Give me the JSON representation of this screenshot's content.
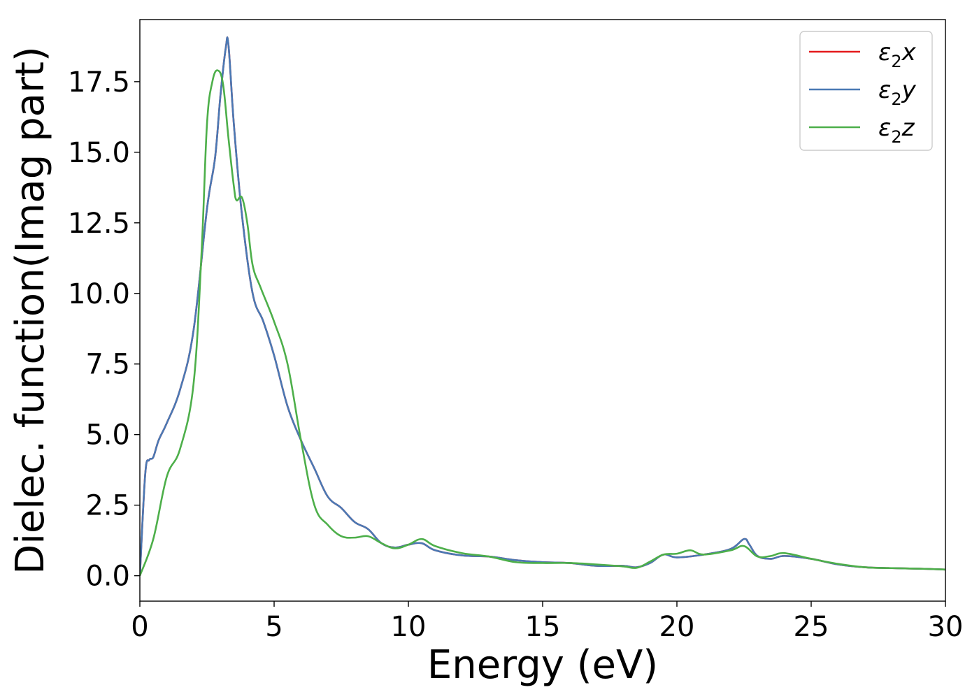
{
  "chart_data": {
    "type": "line",
    "xlabel": "Energy (eV)",
    "ylabel": "Dielec. function(Imag part)",
    "xlim": [
      0,
      30
    ],
    "ylim": [
      -0.9,
      19.7
    ],
    "xticks": [
      0,
      5,
      10,
      15,
      20,
      25,
      30
    ],
    "xtick_labels": [
      "0",
      "5",
      "10",
      "15",
      "20",
      "25",
      "30"
    ],
    "yticks": [
      0.0,
      2.5,
      5.0,
      7.5,
      10.0,
      12.5,
      15.0,
      17.5
    ],
    "ytick_labels": [
      "0.0",
      "2.5",
      "5.0",
      "7.5",
      "10.0",
      "12.5",
      "15.0",
      "17.5"
    ],
    "grid": false,
    "legend_position": "top-right",
    "series": [
      {
        "name": "ε₂x",
        "legend_main": "ε",
        "legend_sub": "2",
        "legend_var": "x",
        "color": "#e41a1c",
        "x": [
          0,
          0.2,
          0.35,
          0.5,
          0.7,
          1.0,
          1.5,
          2.0,
          2.5,
          2.8,
          3.0,
          3.2,
          3.3,
          3.5,
          3.8,
          4.2,
          4.6,
          5.0,
          5.5,
          6.0,
          6.5,
          7.0,
          7.5,
          8.0,
          8.5,
          9.0,
          9.5,
          10.0,
          10.5,
          11.0,
          12.0,
          13.0,
          14.0,
          15.0,
          16.0,
          17.0,
          18.0,
          18.5,
          19.0,
          19.5,
          20.0,
          21.0,
          22.0,
          22.5,
          22.7,
          23.0,
          23.5,
          24.0,
          25.0,
          26.0,
          27.0,
          28.0,
          29.0,
          30.0
        ],
        "y": [
          0.0,
          3.6,
          4.1,
          4.2,
          4.8,
          5.4,
          6.6,
          8.7,
          13.0,
          14.8,
          17.0,
          18.7,
          18.8,
          16.0,
          12.8,
          10.0,
          9.0,
          7.8,
          6.0,
          4.8,
          3.8,
          2.8,
          2.4,
          1.9,
          1.65,
          1.15,
          1.0,
          1.1,
          1.15,
          0.9,
          0.72,
          0.68,
          0.55,
          0.48,
          0.45,
          0.35,
          0.35,
          0.3,
          0.45,
          0.75,
          0.65,
          0.75,
          0.95,
          1.3,
          1.1,
          0.7,
          0.6,
          0.7,
          0.6,
          0.4,
          0.3,
          0.27,
          0.25,
          0.22
        ]
      },
      {
        "name": "ε₂y",
        "legend_main": "ε",
        "legend_sub": "2",
        "legend_var": "y",
        "color": "#4a79b4",
        "x": [
          0,
          0.2,
          0.35,
          0.5,
          0.7,
          1.0,
          1.5,
          2.0,
          2.5,
          2.8,
          3.0,
          3.2,
          3.3,
          3.5,
          3.8,
          4.2,
          4.6,
          5.0,
          5.5,
          6.0,
          6.5,
          7.0,
          7.5,
          8.0,
          8.5,
          9.0,
          9.5,
          10.0,
          10.5,
          11.0,
          12.0,
          13.0,
          14.0,
          15.0,
          16.0,
          17.0,
          18.0,
          18.5,
          19.0,
          19.5,
          20.0,
          21.0,
          22.0,
          22.5,
          22.7,
          23.0,
          23.5,
          24.0,
          25.0,
          26.0,
          27.0,
          28.0,
          29.0,
          30.0
        ],
        "y": [
          0.0,
          3.6,
          4.1,
          4.2,
          4.8,
          5.4,
          6.6,
          8.7,
          13.0,
          14.8,
          17.0,
          18.7,
          18.8,
          16.0,
          12.8,
          10.0,
          9.0,
          7.8,
          6.0,
          4.8,
          3.8,
          2.8,
          2.4,
          1.9,
          1.65,
          1.15,
          1.0,
          1.1,
          1.15,
          0.9,
          0.72,
          0.68,
          0.55,
          0.48,
          0.45,
          0.35,
          0.35,
          0.3,
          0.45,
          0.75,
          0.65,
          0.75,
          0.95,
          1.3,
          1.1,
          0.7,
          0.6,
          0.7,
          0.6,
          0.4,
          0.3,
          0.27,
          0.25,
          0.22
        ]
      },
      {
        "name": "ε₂z",
        "legend_main": "ε",
        "legend_sub": "2",
        "legend_var": "z",
        "color": "#4daf4a",
        "x": [
          0,
          0.5,
          1.0,
          1.5,
          2.0,
          2.3,
          2.5,
          2.7,
          2.9,
          3.1,
          3.3,
          3.5,
          3.6,
          3.8,
          4.0,
          4.2,
          4.5,
          5.0,
          5.5,
          6.0,
          6.5,
          7.0,
          7.5,
          8.0,
          8.5,
          9.0,
          9.5,
          10.0,
          10.5,
          11.0,
          12.0,
          13.0,
          14.0,
          15.0,
          16.0,
          17.0,
          18.0,
          18.5,
          19.0,
          19.5,
          20.0,
          20.5,
          21.0,
          22.0,
          22.5,
          23.0,
          23.5,
          24.0,
          25.0,
          26.0,
          27.0,
          28.0,
          29.0,
          30.0
        ],
        "y": [
          0.0,
          1.3,
          3.5,
          4.5,
          6.8,
          11.5,
          16.0,
          17.5,
          17.9,
          17.4,
          15.5,
          13.8,
          13.3,
          13.4,
          12.5,
          11.0,
          10.2,
          9.0,
          7.5,
          4.8,
          2.5,
          1.8,
          1.4,
          1.35,
          1.4,
          1.15,
          0.97,
          1.1,
          1.3,
          1.05,
          0.8,
          0.68,
          0.48,
          0.45,
          0.45,
          0.4,
          0.33,
          0.28,
          0.5,
          0.75,
          0.78,
          0.9,
          0.75,
          0.9,
          1.05,
          0.68,
          0.7,
          0.8,
          0.6,
          0.42,
          0.3,
          0.27,
          0.25,
          0.22
        ]
      }
    ]
  }
}
